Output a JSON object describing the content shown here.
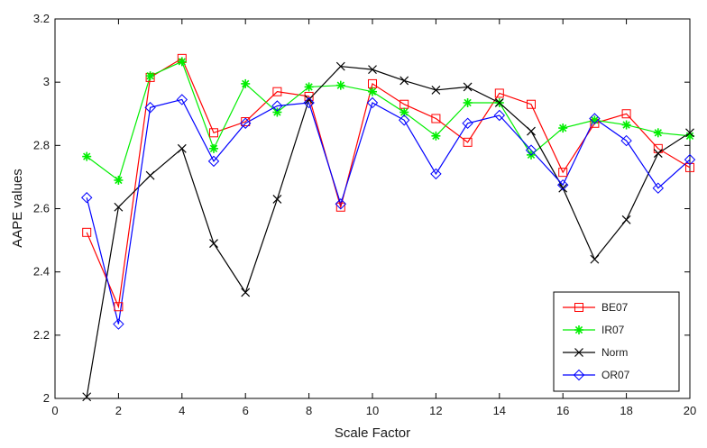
{
  "chart_data": {
    "type": "line",
    "title": "",
    "xlabel": "Scale Factor",
    "ylabel": "AAPE values",
    "xlim": [
      0,
      20
    ],
    "ylim": [
      2,
      3.2
    ],
    "xticks": [
      "0",
      "2",
      "4",
      "6",
      "8",
      "10",
      "12",
      "14",
      "16",
      "18",
      "20"
    ],
    "yticks": [
      "2",
      "2.2",
      "2.4",
      "2.6",
      "2.8",
      "3",
      "3.2"
    ],
    "grid": false,
    "legend_position": "bottom-right",
    "x": [
      1,
      2,
      3,
      4,
      5,
      6,
      7,
      8,
      9,
      10,
      11,
      12,
      13,
      14,
      15,
      16,
      17,
      18,
      19,
      20
    ],
    "series": [
      {
        "name": "BE07",
        "color": "#ff0000",
        "marker": "square",
        "values": [
          2.525,
          2.29,
          3.015,
          3.075,
          2.84,
          2.875,
          2.97,
          2.955,
          2.605,
          2.995,
          2.93,
          2.885,
          2.81,
          2.965,
          2.93,
          2.715,
          2.87,
          2.9,
          2.79,
          2.73
        ]
      },
      {
        "name": "IR07",
        "color": "#00ee00",
        "marker": "asterisk",
        "values": [
          2.765,
          2.69,
          3.02,
          3.065,
          2.79,
          2.995,
          2.905,
          2.985,
          2.99,
          2.97,
          2.905,
          2.83,
          2.935,
          2.935,
          2.77,
          2.855,
          2.88,
          2.865,
          2.84,
          2.83
        ]
      },
      {
        "name": "Norm",
        "color": "#000000",
        "marker": "x",
        "values": [
          2.005,
          2.605,
          2.705,
          2.79,
          2.49,
          2.335,
          2.63,
          2.945,
          3.05,
          3.04,
          3.005,
          2.975,
          2.985,
          2.935,
          2.845,
          2.665,
          2.44,
          2.565,
          2.775,
          2.84
        ]
      },
      {
        "name": "OR07",
        "color": "#0000ff",
        "marker": "diamond",
        "values": [
          2.635,
          2.235,
          2.92,
          2.945,
          2.75,
          2.87,
          2.925,
          2.935,
          2.615,
          2.935,
          2.88,
          2.71,
          2.87,
          2.895,
          2.785,
          2.675,
          2.885,
          2.815,
          2.665,
          2.755
        ]
      }
    ]
  }
}
